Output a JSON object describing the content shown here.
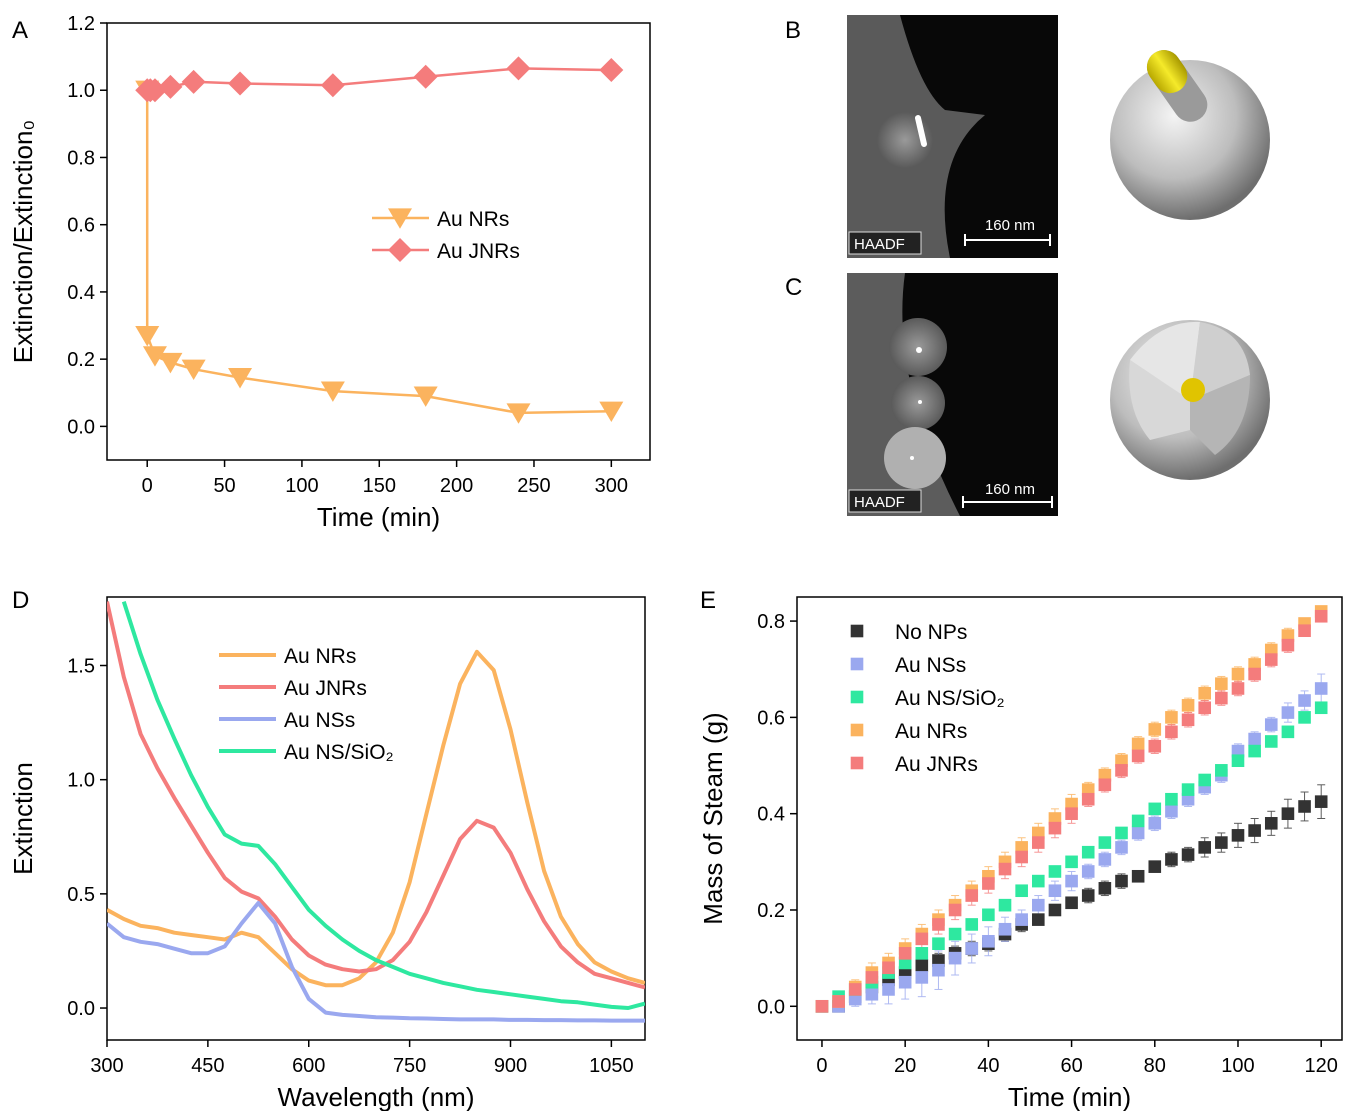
{
  "chart_data": [
    {
      "type": "line",
      "panel": "A",
      "xlabel": "Time (min)",
      "ylabel": "Extinction/Extinction₀",
      "xlim": [
        -26,
        325
      ],
      "ylim": [
        -0.1,
        1.2
      ],
      "xticks": [
        0,
        50,
        100,
        150,
        200,
        250,
        300
      ],
      "yticks": [
        {
          "value": 0,
          "label": "0.0"
        },
        0.2,
        0.4,
        0.6,
        0.8,
        {
          "value": 1,
          "label": "1.0"
        },
        1.2
      ],
      "legend": "center",
      "series": [
        {
          "name": "Au NRs",
          "color": "#fbb35e",
          "marker": "triangle-down",
          "x": [
            0,
            0,
            5,
            15,
            30,
            60,
            120,
            180,
            240,
            300
          ],
          "values": [
            1.0,
            0.27,
            0.21,
            0.19,
            0.17,
            0.145,
            0.105,
            0.09,
            0.04,
            0.045
          ]
        },
        {
          "name": "Au JNRs",
          "color": "#f47c7c",
          "marker": "diamond",
          "x": [
            0,
            2,
            5,
            15,
            30,
            60,
            120,
            180,
            240,
            300
          ],
          "values": [
            1.0,
            1.0,
            1.0,
            1.01,
            1.025,
            1.02,
            1.015,
            1.04,
            1.065,
            1.06
          ]
        }
      ]
    },
    {
      "type": "line",
      "panel": "D",
      "xlabel": "Wavelength (nm)",
      "ylabel": "Extinction",
      "xlim": [
        300,
        1100
      ],
      "ylim": [
        -0.14,
        1.8
      ],
      "xticks": [
        300,
        450,
        600,
        750,
        900,
        1050
      ],
      "yticks": [
        {
          "value": 0,
          "label": "0.0"
        },
        0.5,
        {
          "value": 1,
          "label": "1.0"
        },
        1.5
      ],
      "legend": "upper center",
      "x": [
        300,
        325,
        350,
        375,
        400,
        425,
        450,
        475,
        500,
        525,
        550,
        575,
        600,
        625,
        650,
        675,
        700,
        725,
        750,
        775,
        800,
        825,
        850,
        875,
        900,
        925,
        950,
        975,
        1000,
        1025,
        1050,
        1075,
        1100
      ],
      "series": [
        {
          "name": "Au NRs",
          "color": "#fbb35e",
          "values": [
            0.43,
            0.39,
            0.36,
            0.35,
            0.33,
            0.32,
            0.31,
            0.3,
            0.33,
            0.31,
            0.24,
            0.17,
            0.12,
            0.1,
            0.1,
            0.13,
            0.2,
            0.33,
            0.55,
            0.85,
            1.15,
            1.42,
            1.56,
            1.48,
            1.22,
            0.9,
            0.6,
            0.4,
            0.28,
            0.2,
            0.16,
            0.13,
            0.11
          ]
        },
        {
          "name": "Au JNRs",
          "color": "#f47c7c",
          "values": [
            1.78,
            1.45,
            1.2,
            1.05,
            0.92,
            0.8,
            0.68,
            0.57,
            0.51,
            0.48,
            0.4,
            0.3,
            0.23,
            0.19,
            0.17,
            0.16,
            0.17,
            0.21,
            0.29,
            0.42,
            0.58,
            0.74,
            0.82,
            0.79,
            0.68,
            0.52,
            0.38,
            0.27,
            0.2,
            0.15,
            0.13,
            0.11,
            0.09
          ]
        },
        {
          "name": "Au NSs",
          "color": "#9aa8ef",
          "values": [
            0.37,
            0.31,
            0.29,
            0.28,
            0.26,
            0.24,
            0.24,
            0.27,
            0.37,
            0.46,
            0.37,
            0.18,
            0.04,
            -0.02,
            -0.03,
            -0.035,
            -0.04,
            -0.042,
            -0.045,
            -0.046,
            -0.048,
            -0.05,
            -0.05,
            -0.05,
            -0.052,
            -0.052,
            -0.053,
            -0.053,
            -0.054,
            -0.054,
            -0.055,
            -0.055,
            -0.055
          ]
        },
        {
          "name": "Au NS/SiO₂",
          "color": "#2ee8a0",
          "values": [
            null,
            1.78,
            1.55,
            1.35,
            1.18,
            1.02,
            0.88,
            0.76,
            0.72,
            0.71,
            0.63,
            0.53,
            0.43,
            0.36,
            0.3,
            0.25,
            0.21,
            0.18,
            0.15,
            0.13,
            0.11,
            0.095,
            0.08,
            0.07,
            0.06,
            0.05,
            0.04,
            0.03,
            0.025,
            0.015,
            0.005,
            0.0,
            0.02
          ]
        }
      ]
    },
    {
      "type": "scatter",
      "panel": "E",
      "xlabel": "Time (min)",
      "ylabel": "Mass of Steam (g)",
      "xlim": [
        -6,
        125
      ],
      "ylim": [
        -0.07,
        0.85
      ],
      "xticks": [
        0,
        20,
        40,
        60,
        80,
        100,
        120
      ],
      "yticks": [
        {
          "value": 0,
          "label": "0.0"
        },
        0.2,
        0.4,
        0.6,
        0.8
      ],
      "legend": "upper left",
      "x": [
        0,
        4,
        8,
        12,
        16,
        20,
        24,
        28,
        32,
        36,
        40,
        44,
        48,
        52,
        56,
        60,
        64,
        68,
        72,
        76,
        80,
        84,
        88,
        92,
        96,
        100,
        104,
        108,
        112,
        116,
        120
      ],
      "series": [
        {
          "name": "No NPs",
          "color": "#333333",
          "marker": "square",
          "values": [
            0,
            0,
            0.02,
            0.04,
            0.055,
            0.07,
            0.085,
            0.095,
            0.11,
            0.12,
            0.13,
            0.15,
            0.17,
            0.18,
            0.2,
            0.215,
            0.23,
            0.245,
            0.26,
            0.27,
            0.29,
            0.305,
            0.315,
            0.33,
            0.34,
            0.355,
            0.365,
            0.38,
            0.4,
            0.415,
            0.425
          ],
          "errors": [
            0.005,
            0.01,
            0.015,
            0.02,
            0.02,
            0.02,
            0.015,
            0.015,
            0.015,
            0.015,
            0.015,
            0.015,
            0.015,
            0.01,
            0.01,
            0.01,
            0.015,
            0.015,
            0.015,
            0.01,
            0.01,
            0.015,
            0.015,
            0.02,
            0.02,
            0.025,
            0.025,
            0.025,
            0.03,
            0.03,
            0.035
          ]
        },
        {
          "name": "Au NSs",
          "color": "#9aa8ef",
          "marker": "square",
          "values": [
            0,
            0,
            0.015,
            0.025,
            0.035,
            0.05,
            0.06,
            0.075,
            0.1,
            0.12,
            0.135,
            0.16,
            0.18,
            0.21,
            0.24,
            0.26,
            0.28,
            0.305,
            0.33,
            0.36,
            0.38,
            0.405,
            0.43,
            0.455,
            0.48,
            0.53,
            0.555,
            0.585,
            0.61,
            0.635,
            0.66
          ],
          "errors": [
            0.005,
            0.01,
            0.015,
            0.02,
            0.03,
            0.035,
            0.04,
            0.04,
            0.035,
            0.03,
            0.03,
            0.025,
            0.02,
            0.02,
            0.02,
            0.02,
            0.015,
            0.015,
            0.015,
            0.015,
            0.015,
            0.015,
            0.015,
            0.015,
            0.015,
            0.015,
            0.015,
            0.015,
            0.02,
            0.02,
            0.03
          ]
        },
        {
          "name": "Au NS/SiO₂",
          "color": "#2ee8a0",
          "marker": "square",
          "values": [
            0,
            0.02,
            0.035,
            0.05,
            0.07,
            0.09,
            0.11,
            0.13,
            0.15,
            0.17,
            0.19,
            0.21,
            0.24,
            0.26,
            0.28,
            0.3,
            0.32,
            0.34,
            0.36,
            0.385,
            0.41,
            0.43,
            0.45,
            0.47,
            0.49,
            0.51,
            0.53,
            0.55,
            0.57,
            0.6,
            0.62
          ],
          "errors": [
            0.005,
            0.01,
            0.01,
            0.01,
            0.01,
            0.01,
            0.01,
            0.01,
            0.01,
            0.01,
            0.01,
            0.01,
            0.01,
            0.01,
            0.01,
            0.01,
            0.01,
            0.01,
            0.01,
            0.01,
            0.01,
            0.01,
            0.01,
            0.01,
            0.01,
            0.01,
            0.01,
            0.01,
            0.01,
            0.01,
            0.01
          ]
        },
        {
          "name": "Au NRs",
          "color": "#fbb35e",
          "marker": "square",
          "values": [
            0,
            0.01,
            0.04,
            0.07,
            0.09,
            0.12,
            0.15,
            0.18,
            0.21,
            0.24,
            0.27,
            0.3,
            0.33,
            0.36,
            0.39,
            0.42,
            0.45,
            0.48,
            0.51,
            0.545,
            0.575,
            0.6,
            0.625,
            0.65,
            0.67,
            0.69,
            0.71,
            0.74,
            0.77,
            0.795,
            0.82
          ],
          "errors": [
            0.005,
            0.01,
            0.015,
            0.02,
            0.02,
            0.02,
            0.02,
            0.02,
            0.02,
            0.02,
            0.02,
            0.02,
            0.02,
            0.02,
            0.02,
            0.02,
            0.015,
            0.015,
            0.015,
            0.015,
            0.015,
            0.015,
            0.015,
            0.015,
            0.015,
            0.015,
            0.015,
            0.015,
            0.015,
            0.01,
            0.01
          ]
        },
        {
          "name": "Au JNRs",
          "color": "#f47c7c",
          "marker": "square",
          "values": [
            0,
            0.01,
            0.035,
            0.06,
            0.08,
            0.11,
            0.14,
            0.17,
            0.2,
            0.23,
            0.255,
            0.285,
            0.31,
            0.34,
            0.37,
            0.4,
            0.43,
            0.46,
            0.49,
            0.52,
            0.54,
            0.57,
            0.595,
            0.62,
            0.64,
            0.66,
            0.69,
            0.72,
            0.75,
            0.78,
            0.81
          ],
          "errors": [
            0.005,
            0.01,
            0.015,
            0.02,
            0.02,
            0.02,
            0.02,
            0.02,
            0.02,
            0.02,
            0.02,
            0.02,
            0.02,
            0.02,
            0.02,
            0.02,
            0.015,
            0.015,
            0.015,
            0.015,
            0.015,
            0.015,
            0.015,
            0.015,
            0.015,
            0.015,
            0.015,
            0.015,
            0.015,
            0.01,
            0.01
          ]
        }
      ]
    }
  ],
  "images": [
    {
      "panel": "B",
      "detector": "HAADF",
      "scale_bar": "160 nm"
    },
    {
      "panel": "C",
      "detector": "HAADF",
      "scale_bar": "160 nm"
    }
  ]
}
